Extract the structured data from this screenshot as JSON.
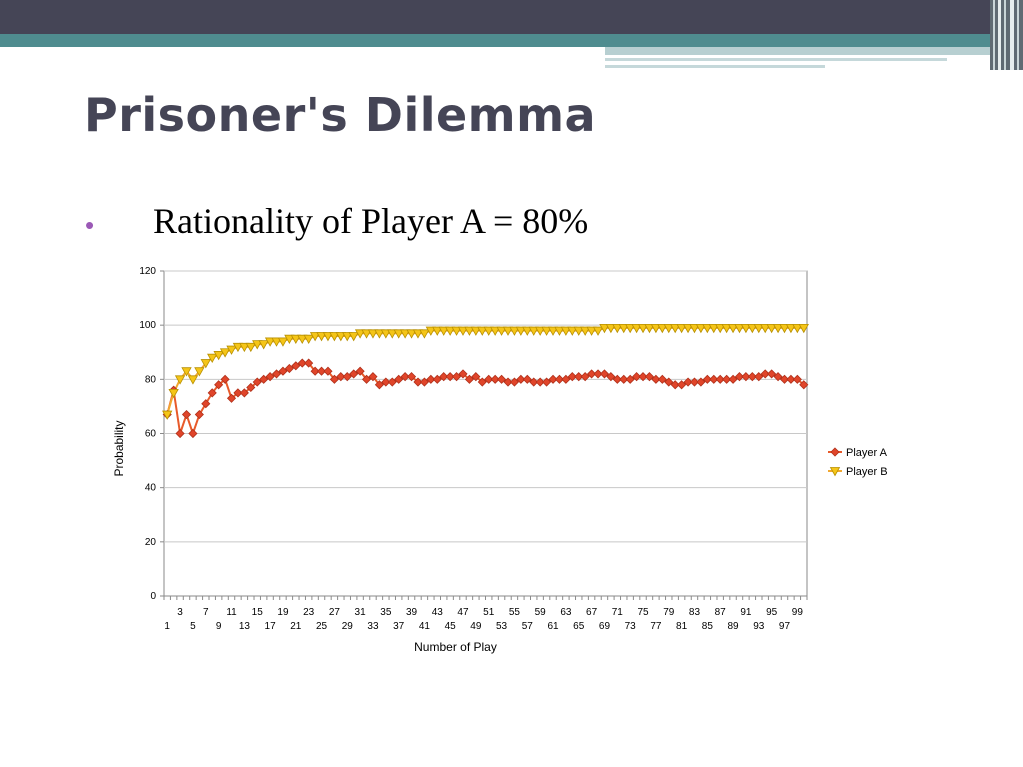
{
  "slide": {
    "title": "Prisoner's Dilemma",
    "bullet": "Rationality of Player A = 80%"
  },
  "colors": {
    "header": "#454556",
    "teal": "#4f8c8f",
    "bullet": "#9b59b6",
    "player_a": "#e0452a",
    "player_b": "#f5c518"
  },
  "chart_data": {
    "type": "line",
    "xlabel": "Number of Play",
    "ylabel": "Probability",
    "ylim": [
      0,
      120
    ],
    "yticks": [
      0,
      20,
      40,
      60,
      80,
      100,
      120
    ],
    "x": [
      1,
      2,
      3,
      4,
      5,
      6,
      7,
      8,
      9,
      10,
      11,
      12,
      13,
      14,
      15,
      16,
      17,
      18,
      19,
      20,
      21,
      22,
      23,
      24,
      25,
      26,
      27,
      28,
      29,
      30,
      31,
      32,
      33,
      34,
      35,
      36,
      37,
      38,
      39,
      40,
      41,
      42,
      43,
      44,
      45,
      46,
      47,
      48,
      49,
      50,
      51,
      52,
      53,
      54,
      55,
      56,
      57,
      58,
      59,
      60,
      61,
      62,
      63,
      64,
      65,
      66,
      67,
      68,
      69,
      70,
      71,
      72,
      73,
      74,
      75,
      76,
      77,
      78,
      79,
      80,
      81,
      82,
      83,
      84,
      85,
      86,
      87,
      88,
      89,
      90,
      91,
      92,
      93,
      94,
      95,
      96,
      97,
      98,
      99,
      100
    ],
    "xticks_odd_row1": [
      3,
      7,
      11,
      15,
      19,
      23,
      27,
      31,
      35,
      39,
      43,
      47,
      51,
      55,
      59,
      63,
      67,
      71,
      75,
      79,
      83,
      87,
      91,
      95,
      99
    ],
    "xticks_odd_row2": [
      1,
      5,
      9,
      13,
      17,
      21,
      25,
      29,
      33,
      37,
      41,
      45,
      49,
      53,
      57,
      61,
      65,
      69,
      73,
      77,
      81,
      85,
      89,
      93,
      97
    ],
    "legend_position": "right",
    "grid": true,
    "series": [
      {
        "name": "Player A",
        "marker": "diamond",
        "values": [
          67,
          76,
          60,
          67,
          60,
          67,
          71,
          75,
          78,
          80,
          73,
          75,
          75,
          77,
          79,
          80,
          81,
          82,
          83,
          84,
          85,
          86,
          86,
          83,
          83,
          83,
          80,
          81,
          81,
          82,
          83,
          80,
          81,
          78,
          79,
          79,
          80,
          81,
          81,
          79,
          79,
          80,
          80,
          81,
          81,
          81,
          82,
          80,
          81,
          79,
          80,
          80,
          80,
          79,
          79,
          80,
          80,
          79,
          79,
          79,
          80,
          80,
          80,
          81,
          81,
          81,
          82,
          82,
          82,
          81,
          80,
          80,
          80,
          81,
          81,
          81,
          80,
          80,
          79,
          78,
          78,
          79,
          79,
          79,
          80,
          80,
          80,
          80,
          80,
          81,
          81,
          81,
          81,
          82,
          82,
          81,
          80,
          80,
          80,
          78
        ]
      },
      {
        "name": "Player B",
        "marker": "triangle-down",
        "values": [
          67,
          75,
          80,
          83,
          80,
          83,
          86,
          88,
          89,
          90,
          91,
          92,
          92,
          92,
          93,
          93,
          94,
          94,
          94,
          95,
          95,
          95,
          95,
          96,
          96,
          96,
          96,
          96,
          96,
          96,
          97,
          97,
          97,
          97,
          97,
          97,
          97,
          97,
          97,
          97,
          97,
          98,
          98,
          98,
          98,
          98,
          98,
          98,
          98,
          98,
          98,
          98,
          98,
          98,
          98,
          98,
          98,
          98,
          98,
          98,
          98,
          98,
          98,
          98,
          98,
          98,
          98,
          98,
          99,
          99,
          99,
          99,
          99,
          99,
          99,
          99,
          99,
          99,
          99,
          99,
          99,
          99,
          99,
          99,
          99,
          99,
          99,
          99,
          99,
          99,
          99,
          99,
          99,
          99,
          99,
          99,
          99,
          99,
          99,
          99
        ]
      }
    ]
  }
}
